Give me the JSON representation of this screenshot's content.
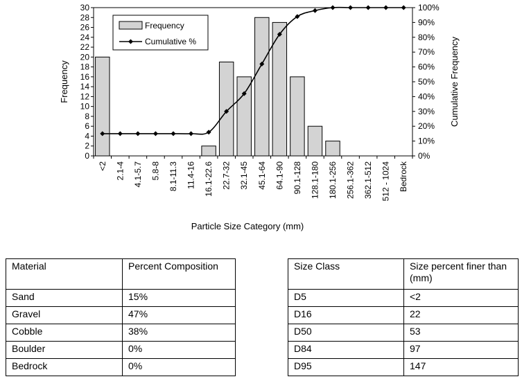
{
  "chart_data": {
    "type": "bar",
    "categories": [
      "<2",
      "2.1-4",
      "4.1-5.7",
      "5.8-8",
      "8.1-11.3",
      "11.4-16",
      "16.1-22.6",
      "22.7-32",
      "32.1-45",
      "45.1-64",
      "64.1-90",
      "90.1-128",
      "128.1-180",
      "180.1-256",
      "256.1-362",
      "362.1-512",
      "512 - 1024",
      "Bedrock"
    ],
    "series": [
      {
        "name": "Frequency",
        "type": "bar",
        "axis": "left",
        "color": "#d3d3d3",
        "values": [
          20,
          0,
          0,
          0,
          0,
          0,
          2,
          19,
          16,
          28,
          27,
          16,
          6,
          3,
          0,
          0,
          0,
          0
        ]
      },
      {
        "name": "Cumulative %",
        "type": "line",
        "axis": "right",
        "color": "#000000",
        "values": [
          15,
          15,
          15,
          15,
          15,
          15,
          16,
          30,
          42,
          62,
          82,
          94,
          98,
          100,
          100,
          100,
          100,
          100
        ]
      }
    ],
    "xlabel": "Particle Size Category (mm)",
    "ylabel": "Frequency",
    "y2label": "Cumulative Frequency",
    "ylim": [
      0,
      30
    ],
    "y2lim": [
      0,
      100
    ],
    "yticks": [
      "0",
      "2",
      "4",
      "6",
      "8",
      "10",
      "12",
      "14",
      "16",
      "18",
      "20",
      "22",
      "24",
      "26",
      "28",
      "30"
    ],
    "y2ticks": [
      "0%",
      "10%",
      "20%",
      "30%",
      "40%",
      "50%",
      "60%",
      "70%",
      "80%",
      "90%",
      "100%"
    ],
    "legend_position": "top-left",
    "grid": false
  },
  "material_table": {
    "headers": [
      "Material",
      "Percent Composition"
    ],
    "rows": [
      [
        "Sand",
        "15%"
      ],
      [
        "Gravel",
        "47%"
      ],
      [
        "Cobble",
        "38%"
      ],
      [
        "Boulder",
        "0%"
      ],
      [
        "Bedrock",
        "0%"
      ]
    ]
  },
  "size_table": {
    "headers": [
      "Size Class",
      "Size percent  finer than (mm)"
    ],
    "rows": [
      [
        "D5",
        "<2"
      ],
      [
        "D16",
        "22"
      ],
      [
        "D50",
        "53"
      ],
      [
        "D84",
        "97"
      ],
      [
        "D95",
        "147"
      ]
    ]
  }
}
